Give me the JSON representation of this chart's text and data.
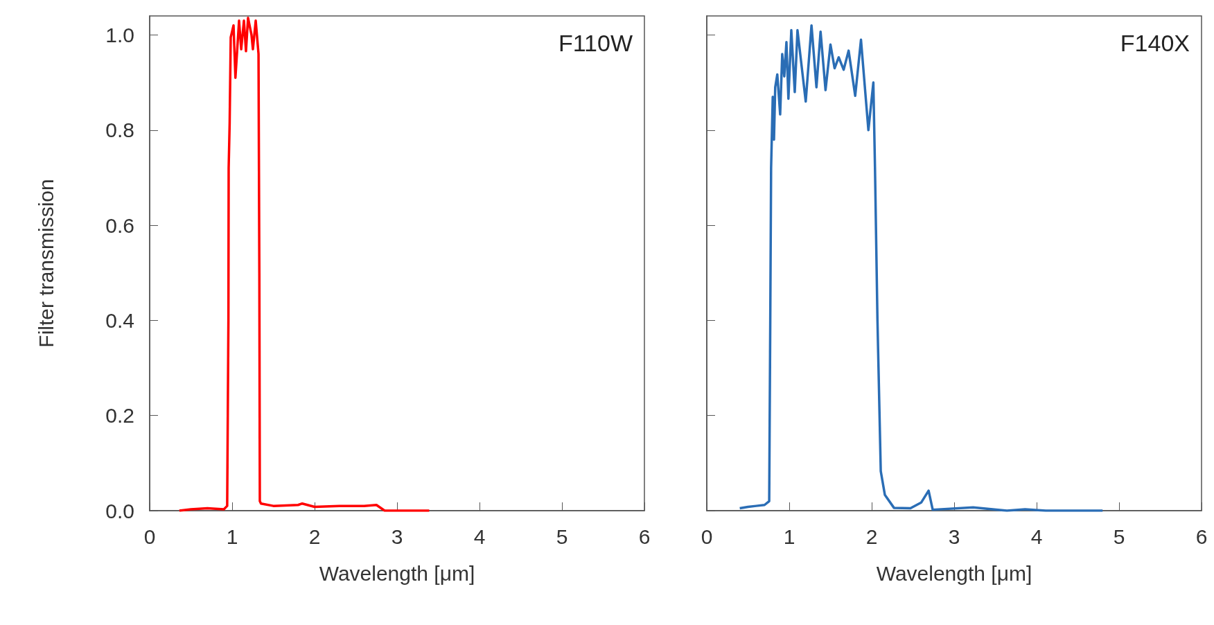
{
  "chart_data": [
    {
      "type": "line",
      "title": "F110W",
      "xlabel": "Wavelength [μm]",
      "ylabel": "Filter transmission",
      "xlim": [
        0,
        6
      ],
      "xticks": [
        0,
        1,
        2,
        3,
        4,
        5,
        6
      ],
      "ylim": [
        0,
        1.04
      ],
      "yticks": [
        {
          "value": 0,
          "label": "0.0"
        },
        {
          "value": 0.2,
          "label": "0.2"
        },
        {
          "value": 0.4,
          "label": "0.4"
        },
        {
          "value": 0.6,
          "label": "0.6"
        },
        {
          "value": 0.8,
          "label": "0.8"
        },
        {
          "value": 1,
          "label": "1.0"
        }
      ],
      "series": [
        {
          "color": "#ff0000",
          "x": [
            0.36,
            0.5,
            0.7,
            0.9,
            0.94,
            0.955,
            0.958,
            0.97,
            0.983,
            1.017,
            1.04,
            1.084,
            1.11,
            1.143,
            1.168,
            1.193,
            1.235,
            1.252,
            1.286,
            1.32,
            1.33,
            1.336,
            1.35,
            1.5,
            1.8,
            1.85,
            2.0,
            2.3,
            2.6,
            2.75,
            2.85,
            3.39
          ],
          "values": [
            0.0,
            0.003,
            0.005,
            0.003,
            0.01,
            0.4,
            0.72,
            0.815,
            0.995,
            1.02,
            0.91,
            1.03,
            0.97,
            1.03,
            0.966,
            1.036,
            1.0,
            0.97,
            1.03,
            0.96,
            0.5,
            0.02,
            0.015,
            0.01,
            0.012,
            0.015,
            0.008,
            0.01,
            0.01,
            0.012,
            0.0,
            0.0
          ]
        }
      ]
    },
    {
      "type": "line",
      "title": "F140X",
      "xlabel": "Wavelength [μm]",
      "tick_labels": "x",
      "xlim": [
        0,
        6
      ],
      "xticks": [
        0,
        1,
        2,
        3,
        4,
        5,
        6
      ],
      "ylim": [
        0,
        1.04
      ],
      "yticks": [
        0,
        0.2,
        0.4,
        0.6,
        0.8,
        1
      ],
      "series": [
        {
          "color": "#2a6db5",
          "x": [
            0.4,
            0.5,
            0.6,
            0.7,
            0.757,
            0.77,
            0.78,
            0.8,
            0.815,
            0.83,
            0.855,
            0.89,
            0.915,
            0.94,
            0.966,
            0.99,
            1.025,
            1.067,
            1.1,
            1.2,
            1.27,
            1.33,
            1.38,
            1.44,
            1.5,
            1.55,
            1.6,
            1.66,
            1.72,
            1.8,
            1.87,
            1.96,
            2.02,
            2.04,
            2.07,
            2.11,
            2.16,
            2.27,
            2.47,
            2.6,
            2.69,
            2.74,
            3.23,
            3.64,
            3.86,
            4.11,
            4.8
          ],
          "values": [
            0.005,
            0.008,
            0.01,
            0.012,
            0.02,
            0.4,
            0.72,
            0.87,
            0.78,
            0.89,
            0.917,
            0.833,
            0.96,
            0.913,
            0.985,
            0.866,
            1.01,
            0.88,
            1.01,
            0.86,
            1.02,
            0.89,
            1.007,
            0.884,
            0.98,
            0.93,
            0.953,
            0.927,
            0.967,
            0.872,
            0.99,
            0.8,
            0.9,
            0.72,
            0.4,
            0.083,
            0.033,
            0.006,
            0.005,
            0.017,
            0.042,
            0.002,
            0.007,
            0.0,
            0.003,
            0.0,
            0.0
          ]
        }
      ]
    }
  ]
}
